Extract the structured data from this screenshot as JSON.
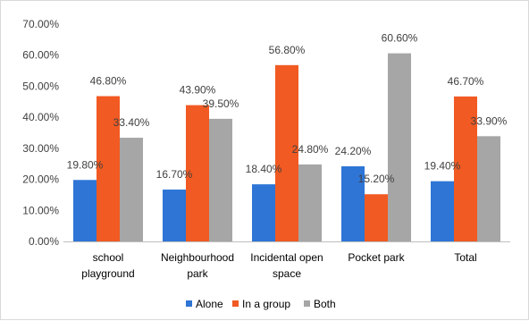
{
  "chart_data": {
    "type": "bar",
    "categories": [
      [
        "school",
        "playground"
      ],
      [
        "Neighbourhood",
        "park"
      ],
      [
        "Incidental open",
        "space"
      ],
      [
        "Pocket park"
      ],
      [
        "Total"
      ]
    ],
    "series": [
      {
        "name": "Alone",
        "color": "#2e75d6",
        "values": [
          19.8,
          16.7,
          18.4,
          24.2,
          19.4
        ],
        "labels": [
          "19.80%",
          "16.70%",
          "18.40%",
          "24.20%",
          "19.40%"
        ]
      },
      {
        "name": "In a group",
        "color": "#f15a22",
        "values": [
          46.8,
          43.9,
          56.8,
          15.2,
          46.7
        ],
        "labels": [
          "46.80%",
          "43.90%",
          "56.80%",
          "15.20%",
          "46.70%"
        ]
      },
      {
        "name": "Both",
        "color": "#a6a6a6",
        "values": [
          33.4,
          39.5,
          24.8,
          60.6,
          33.9
        ],
        "labels": [
          "33.40%",
          "39.50%",
          "24.80%",
          "60.60%",
          "33.90%"
        ]
      }
    ],
    "y_ticks": [
      "0.00%",
      "10.00%",
      "20.00%",
      "30.00%",
      "40.00%",
      "50.00%",
      "60.00%",
      "70.00%"
    ],
    "ylim": [
      0,
      70
    ],
    "grid": false,
    "legend_position": "bottom"
  }
}
